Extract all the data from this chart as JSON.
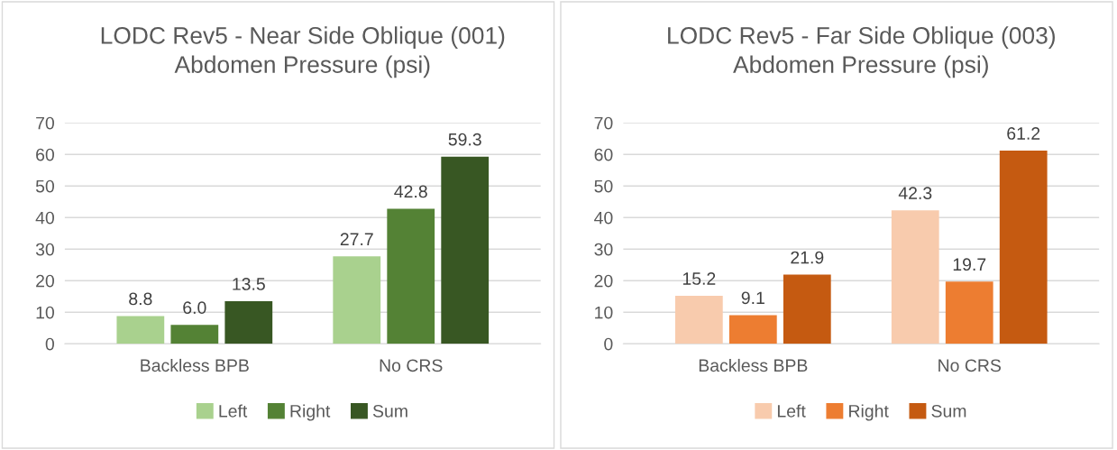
{
  "chart_data": [
    {
      "type": "bar",
      "title": "LODC Rev5 - Near Side Oblique (001)\nAbdomen Pressure (psi)",
      "categories": [
        "Backless BPB",
        "No CRS"
      ],
      "series": [
        {
          "name": "Left",
          "color": "#a9d18e",
          "values": [
            8.8,
            27.7
          ],
          "value_labels": [
            "8.8",
            "27.7"
          ]
        },
        {
          "name": "Right",
          "color": "#548235",
          "values": [
            6.0,
            42.8
          ],
          "value_labels": [
            "6.0",
            "42.8"
          ]
        },
        {
          "name": "Sum",
          "color": "#385723",
          "values": [
            13.5,
            59.3
          ],
          "value_labels": [
            "13.5",
            "59.3"
          ]
        }
      ],
      "ylim": [
        0,
        70
      ],
      "yticks": [
        0,
        10,
        20,
        30,
        40,
        50,
        60,
        70
      ],
      "grid": "y",
      "legend": "bottom"
    },
    {
      "type": "bar",
      "title": "LODC Rev5 - Far Side Oblique (003)\nAbdomen Pressure (psi)",
      "categories": [
        "Backless BPB",
        "No CRS"
      ],
      "series": [
        {
          "name": "Left",
          "color": "#f8cbad",
          "values": [
            15.2,
            42.3
          ],
          "value_labels": [
            "15.2",
            "42.3"
          ]
        },
        {
          "name": "Right",
          "color": "#ed7d31",
          "values": [
            9.1,
            19.7
          ],
          "value_labels": [
            "9.1",
            "19.7"
          ]
        },
        {
          "name": "Sum",
          "color": "#c55a11",
          "values": [
            21.9,
            61.2
          ],
          "value_labels": [
            "21.9",
            "61.2"
          ]
        }
      ],
      "ylim": [
        0,
        70
      ],
      "yticks": [
        0,
        10,
        20,
        30,
        40,
        50,
        60,
        70
      ],
      "grid": "y",
      "legend": "bottom"
    }
  ]
}
